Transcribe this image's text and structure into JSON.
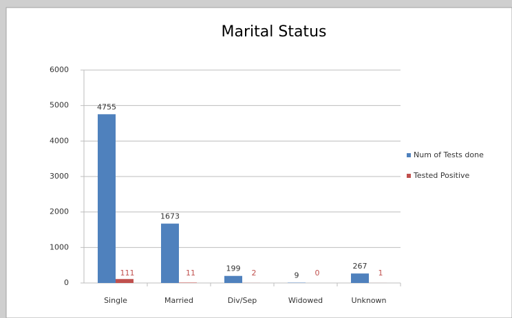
{
  "chart_data": {
    "type": "bar",
    "title": "Marital Status",
    "categories": [
      "Single",
      "Married",
      "Div/Sep",
      "Widowed",
      "Unknown"
    ],
    "series": [
      {
        "name": "Num of Tests done",
        "color": "#4f81bd",
        "values": [
          4755,
          1673,
          199,
          9,
          267
        ]
      },
      {
        "name": "Tested Positive",
        "color": "#c0504d",
        "values": [
          111,
          11,
          2,
          0,
          1
        ]
      }
    ],
    "ylim": [
      0,
      6000
    ],
    "yticks": [
      0,
      1000,
      2000,
      3000,
      4000,
      5000,
      6000
    ],
    "grid": true,
    "legend": "right"
  }
}
